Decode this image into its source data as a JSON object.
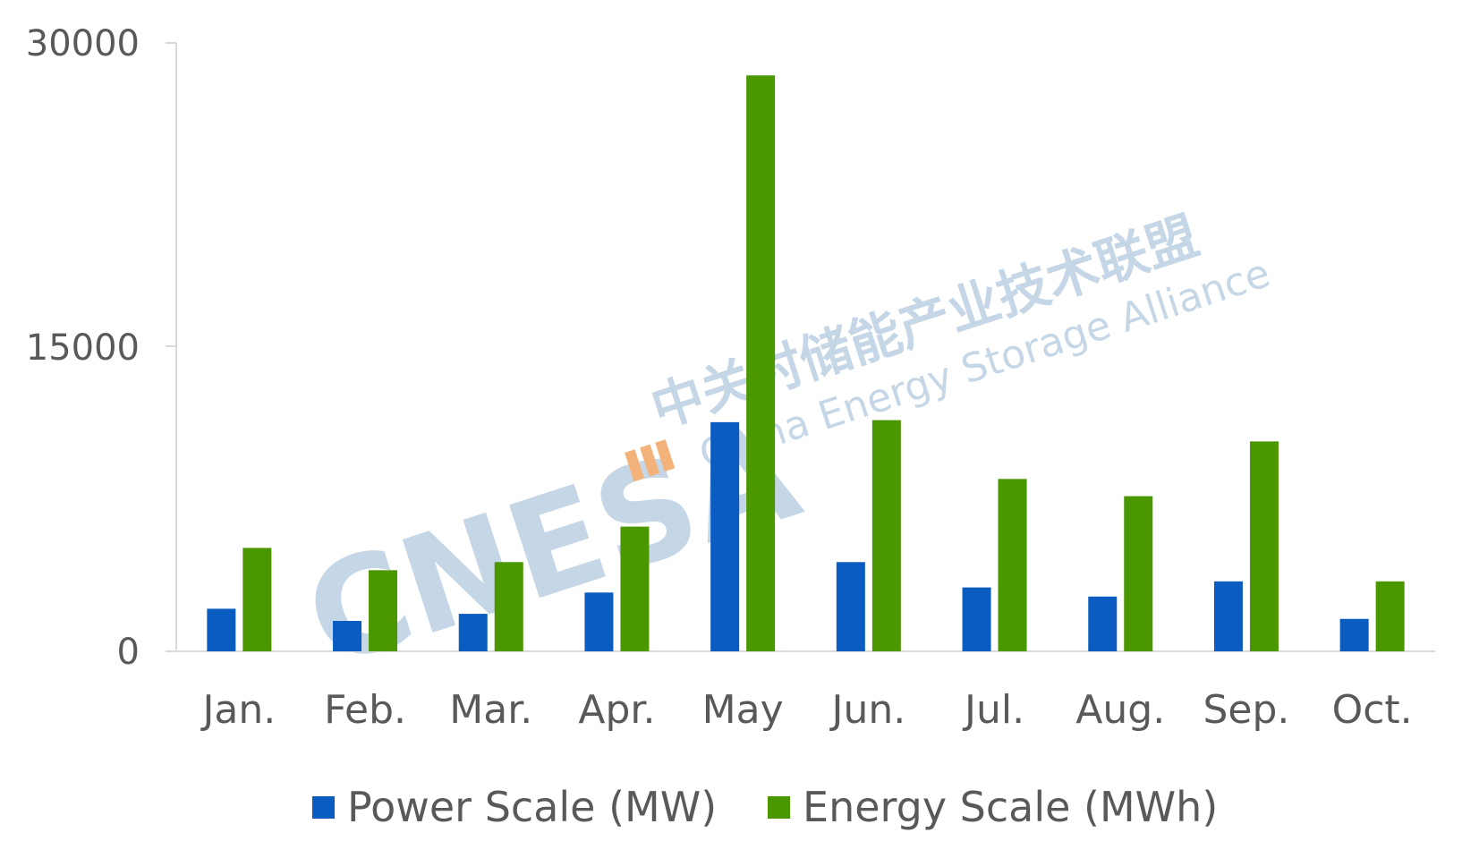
{
  "chart_data": {
    "type": "bar",
    "categories": [
      "Jan.",
      "Feb.",
      "Mar.",
      "Apr.",
      "May",
      "Jun.",
      "Jul.",
      "Aug.",
      "Sep.",
      "Oct."
    ],
    "series": [
      {
        "name": "Power Scale (MW)",
        "color": "#0b5cc1",
        "values": [
          2100,
          1500,
          1850,
          2900,
          11300,
          4400,
          3150,
          2700,
          3450,
          1600
        ]
      },
      {
        "name": "Energy Scale (MWh)",
        "color": "#4b9700",
        "values": [
          5100,
          4000,
          4400,
          6150,
          28400,
          11400,
          8500,
          7650,
          10350,
          3450
        ]
      }
    ],
    "yticks": [
      0,
      15000,
      30000
    ],
    "ylim": [
      0,
      30000
    ],
    "legend_position": "bottom",
    "grid": false
  },
  "watermark": {
    "logo": "CNESA",
    "cn": "中关村储能产业技术联盟",
    "en": "China Energy Storage Alliance",
    "color": "#c5d6e6",
    "accent": "#f3b27a"
  }
}
